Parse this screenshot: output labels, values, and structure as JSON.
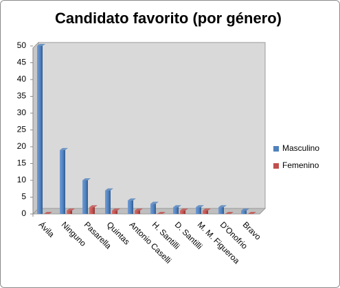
{
  "chart_data": {
    "type": "bar",
    "title": "Candidato favorito (por género)",
    "categories": [
      "Ávila",
      "Ninguno",
      "Pasarella",
      "Quintas",
      "Antonio Caselli",
      "H. Santilli",
      "D. Santilli",
      "M. M. Figueroa",
      "D'Onofrio",
      "Bravo"
    ],
    "series": [
      {
        "name": "Masculino",
        "color": "#4f81bd",
        "values": [
          50,
          19,
          10,
          7,
          4,
          3,
          2,
          2,
          2,
          1
        ]
      },
      {
        "name": "Femenino",
        "color": "#c0504d",
        "values": [
          0,
          1,
          2,
          1,
          1,
          0,
          1,
          1,
          0,
          0
        ]
      }
    ],
    "ylim": [
      0,
      50
    ],
    "yticks": [
      0,
      5,
      10,
      15,
      20,
      25,
      30,
      35,
      40,
      45,
      50
    ],
    "legend": "right"
  }
}
